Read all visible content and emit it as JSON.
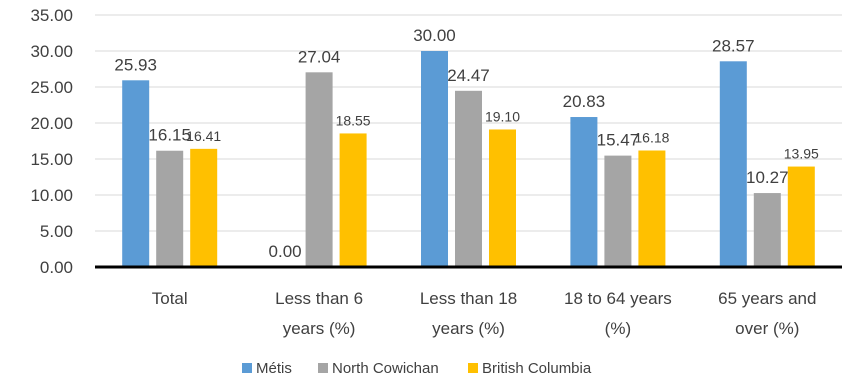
{
  "chart_data": {
    "type": "bar",
    "title": "",
    "xlabel": "",
    "ylabel": "",
    "ylim": [
      0,
      35
    ],
    "yticks": [
      "0.00",
      "5.00",
      "10.00",
      "15.00",
      "20.00",
      "25.00",
      "30.00",
      "35.00"
    ],
    "grid": true,
    "legend_position": "bottom",
    "categories": [
      [
        "Total"
      ],
      [
        "Less than 6",
        "years (%)"
      ],
      [
        "Less than 18",
        "years (%)"
      ],
      [
        "18 to 64 years",
        "(%)"
      ],
      [
        "65 years and",
        "over (%)"
      ]
    ],
    "series": [
      {
        "name": "Métis",
        "color": "#5B9BD5",
        "values": [
          25.93,
          0.0,
          30.0,
          20.83,
          28.57
        ],
        "labels": [
          "25.93",
          "0.00",
          "30.00",
          "20.83",
          "28.57"
        ]
      },
      {
        "name": "North Cowichan",
        "color": "#A5A5A5",
        "values": [
          16.15,
          27.04,
          24.47,
          15.47,
          10.27
        ],
        "labels": [
          "16.15",
          "27.04",
          "24.47",
          "15.47",
          "10.27"
        ]
      },
      {
        "name": "British Columbia",
        "color": "#FFC000",
        "values": [
          16.41,
          18.55,
          19.1,
          16.18,
          13.95
        ],
        "labels": [
          "16.41",
          "18.55",
          "19.10",
          "16.18",
          "13.95"
        ]
      }
    ]
  }
}
